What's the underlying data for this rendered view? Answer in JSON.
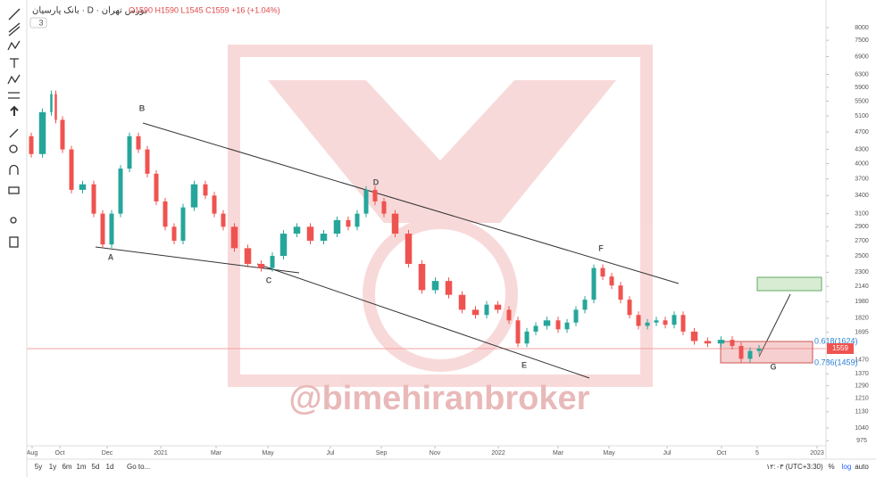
{
  "chart_data": {
    "type": "candlestick",
    "title": "بانک پارسیان · D · بورس تهران",
    "ohlc_text": "O1590 H1590 L1545 C1559 +16 (+1.04%)",
    "indicator_count": "3",
    "watermark": "@bimehiranbroker",
    "log_scale": true,
    "up_color": "#26a69a",
    "down_color": "#ef5350",
    "xlim": [
      0,
      895
    ],
    "x": [
      0,
      10,
      25,
      30,
      35,
      45,
      55,
      70,
      80,
      90,
      100,
      110,
      120,
      130,
      140,
      150,
      160,
      170,
      180,
      195,
      205,
      215,
      225,
      240,
      255,
      270,
      280,
      295,
      310,
      325,
      340,
      355,
      365,
      375,
      385,
      395,
      405,
      420,
      435,
      450,
      465,
      480,
      495,
      510,
      520,
      535,
      545,
      555,
      565,
      575,
      590,
      600,
      610,
      620,
      630,
      640,
      650,
      660,
      670,
      680,
      690,
      700,
      710,
      720,
      730,
      740,
      755,
      770,
      785,
      795,
      805,
      815,
      825
    ],
    "values": [
      4600,
      4200,
      5200,
      5700,
      5000,
      4300,
      3500,
      3600,
      3100,
      2650,
      3100,
      3900,
      4600,
      4300,
      3800,
      3300,
      2900,
      2700,
      3200,
      3600,
      3400,
      3100,
      2900,
      2600,
      2400,
      2350,
      2500,
      2800,
      2900,
      2700,
      2800,
      3000,
      2900,
      3100,
      3500,
      3300,
      3100,
      2800,
      2400,
      2100,
      2200,
      2050,
      1900,
      1850,
      1950,
      1900,
      1800,
      1600,
      1700,
      1750,
      1800,
      1720,
      1780,
      1900,
      2000,
      2350,
      2250,
      2150,
      2000,
      1850,
      1750,
      1780,
      1800,
      1760,
      1850,
      1700,
      1620,
      1600,
      1630,
      1580,
      1480,
      1540,
      1559
    ],
    "last_price": 1559,
    "ylim": [
      950,
      9000
    ],
    "yticks": [
      8000,
      7500,
      6900,
      6300,
      5900,
      5500,
      5100,
      4700,
      4300,
      4000,
      3700,
      3400,
      3100,
      2900,
      2700,
      2500,
      2300,
      2140,
      1980,
      1820,
      1695,
      1470,
      1370,
      1290,
      1210,
      1130,
      1040,
      975
    ],
    "xticks": [
      {
        "value": 6,
        "label": "Aug"
      },
      {
        "value": 37,
        "label": "Oct"
      },
      {
        "value": 90,
        "label": "Dec"
      },
      {
        "value": 150,
        "label": "2021"
      },
      {
        "value": 212,
        "label": "Mar"
      },
      {
        "value": 270,
        "label": "May"
      },
      {
        "value": 340,
        "label": "Jul"
      },
      {
        "value": 397,
        "label": "Sep"
      },
      {
        "value": 457,
        "label": "Nov"
      },
      {
        "value": 528,
        "label": "2022"
      },
      {
        "value": 595,
        "label": "Mar"
      },
      {
        "value": 652,
        "label": "May"
      },
      {
        "value": 717,
        "label": "Jul"
      },
      {
        "value": 778,
        "label": "Oct"
      },
      {
        "value": 818,
        "label": "5"
      },
      {
        "value": 885,
        "label": "2023"
      }
    ],
    "wave_labels": [
      "A",
      "B",
      "C",
      "D",
      "E",
      "F",
      "G"
    ],
    "fib_labels": [
      "0.618(1624)",
      "0.786(1459)"
    ]
  },
  "toolbar": {
    "periods": [
      "5y",
      "1y",
      "6m",
      "1m",
      "5d",
      "1d"
    ],
    "goto": "Go to...",
    "time": "۱۲:۰۳ (UTC+3:30)",
    "options": [
      "%",
      "log",
      "auto"
    ]
  }
}
